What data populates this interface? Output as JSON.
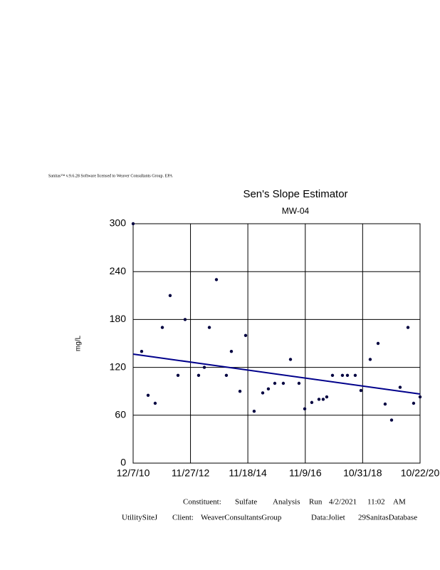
{
  "header": "Sanitas™ v.9.6.28 Software licensed to Weaver Consultants Group. EPA",
  "chart_data": {
    "type": "scatter",
    "title": "Sen's Slope Estimator",
    "subtitle": "MW-04",
    "y_label": "mg/L",
    "color": "#000040",
    "x": [
      "2010-12-07",
      "2011-03-24",
      "2011-06-13",
      "2011-09-10",
      "2011-12-09",
      "2012-03-16",
      "2012-06-23",
      "2012-09-20",
      "2013-03-09",
      "2013-05-20",
      "2013-07-22",
      "2013-10-19",
      "2014-02-21",
      "2014-04-25",
      "2014-08-11",
      "2014-10-21",
      "2015-02-05",
      "2015-05-24",
      "2015-08-03",
      "2015-10-23",
      "2016-02-07",
      "2016-05-07",
      "2016-08-22",
      "2016-11-02",
      "2017-01-30",
      "2017-04-30",
      "2017-06-22",
      "2017-08-06",
      "2017-10-17",
      "2018-02-19",
      "2018-04-23",
      "2018-07-30",
      "2018-10-10",
      "2019-02-03",
      "2019-05-13",
      "2019-08-10",
      "2019-10-30",
      "2020-02-14",
      "2020-05-23",
      "2020-08-02",
      "2020-10-22"
    ],
    "values": [
      300,
      140,
      85,
      75,
      170,
      210,
      110,
      180,
      110,
      120,
      170,
      230,
      110,
      140,
      90,
      160,
      65,
      88,
      93,
      100,
      100,
      130,
      100,
      68,
      76,
      80,
      80,
      83,
      110,
      110,
      110,
      110,
      91,
      130,
      150,
      74,
      54,
      95,
      170,
      75,
      83
    ],
    "trend_line": {
      "color": "#00008b",
      "x": [
        "2010-12-07",
        "2020-10-22"
      ],
      "values": [
        136.6,
        86.6
      ]
    },
    "xlim": [
      "2010-12-07",
      "2020-10-22"
    ],
    "xticks": [
      {
        "value": "2010-12-07",
        "label": "12/7/10"
      },
      {
        "value": "2012-11-27",
        "label": "11/27/12"
      },
      {
        "value": "2014-11-18",
        "label": "11/18/14"
      },
      {
        "value": "2016-11-09",
        "label": "11/9/16"
      },
      {
        "value": "2018-10-31",
        "label": "10/31/18"
      },
      {
        "value": "2020-10-22",
        "label": "10/22/20"
      }
    ],
    "ylim": [
      0,
      300
    ],
    "yticks": [
      0,
      60,
      120,
      180,
      240,
      300
    ],
    "grid": true
  },
  "footer": {
    "line1": [
      "Constituent:",
      "Sulfate",
      "Analysis",
      "Run",
      "4/2/2021",
      "11:02",
      "AM"
    ],
    "line2": [
      "UtilitySiteJ",
      "Client:",
      "WeaverConsultantsGroup",
      "Data:Joliet",
      "29SanitasDatabase"
    ]
  }
}
